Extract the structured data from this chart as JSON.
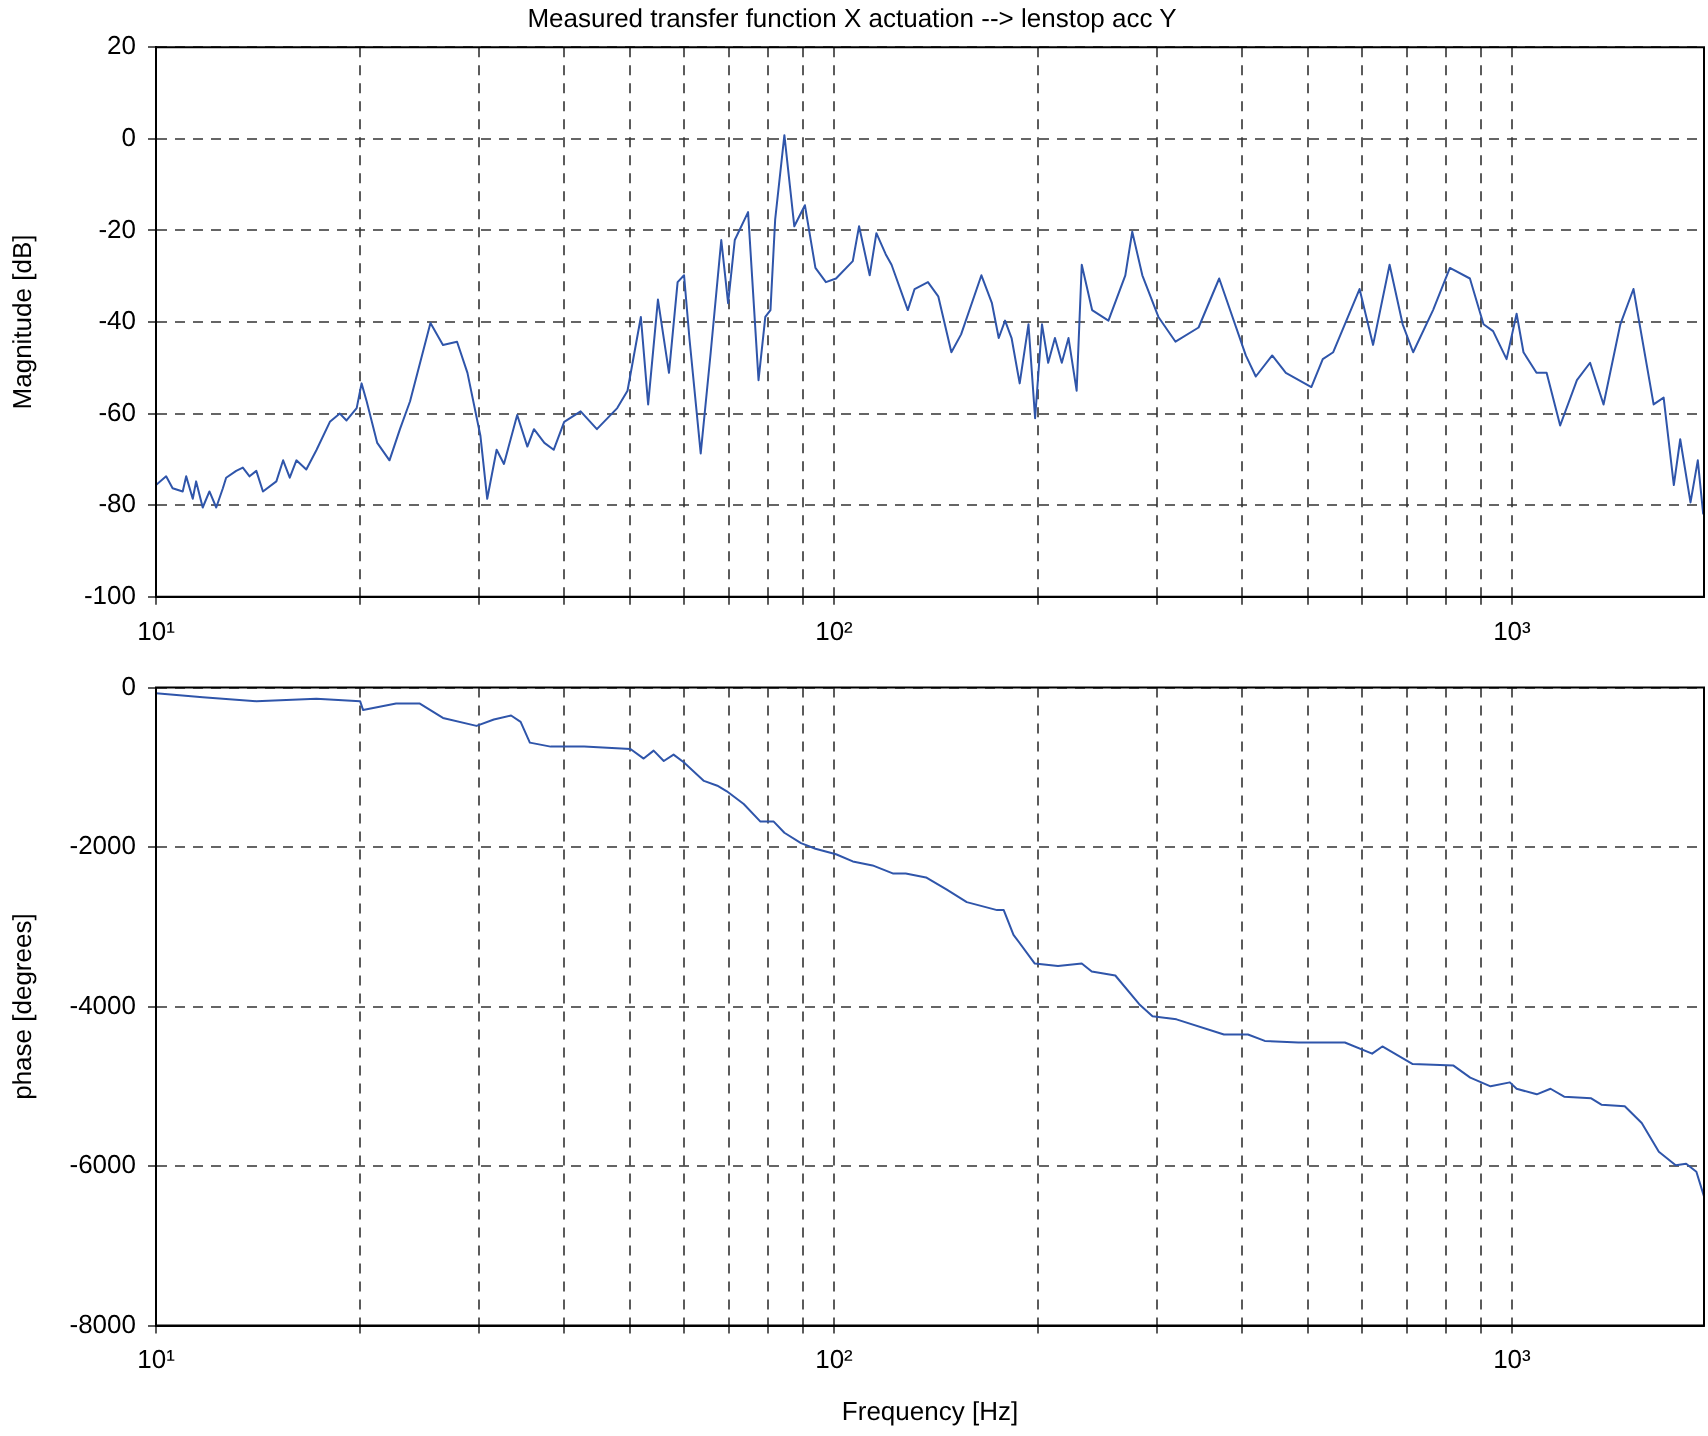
{
  "chart_data": [
    {
      "type": "line",
      "title": "Measured transfer function X actuation --> lenstop acc Y",
      "ylabel": "Magnitude [dB]",
      "log": "x",
      "grid": true,
      "xlim": [
        10,
        1920
      ],
      "ylim": [
        -100,
        20
      ],
      "xticks": [
        {
          "value": 10,
          "label": "10¹"
        },
        {
          "value": 20,
          "label": null
        },
        {
          "value": 30,
          "label": null
        },
        {
          "value": 40,
          "label": null
        },
        {
          "value": 50,
          "label": null
        },
        {
          "value": 60,
          "label": null
        },
        {
          "value": 70,
          "label": null
        },
        {
          "value": 80,
          "label": null
        },
        {
          "value": 90,
          "label": null
        },
        {
          "value": 100,
          "label": "10²"
        },
        {
          "value": 200,
          "label": null
        },
        {
          "value": 300,
          "label": null
        },
        {
          "value": 400,
          "label": null
        },
        {
          "value": 500,
          "label": null
        },
        {
          "value": 600,
          "label": null
        },
        {
          "value": 700,
          "label": null
        },
        {
          "value": 800,
          "label": null
        },
        {
          "value": 900,
          "label": null
        },
        {
          "value": 1000,
          "label": "10³"
        }
      ],
      "yticks": [
        -100,
        -80,
        -60,
        -40,
        -20,
        0,
        20
      ],
      "series": [
        {
          "color": "#2f55aa",
          "x": [
            10,
            10.35,
            10.58,
            10.95,
            11.08,
            11.33,
            11.46,
            11.72,
            11.99,
            12.27,
            12.55,
            12.69,
            13.13,
            13.43,
            13.74,
            14.06,
            14.38,
            15.05,
            15.4,
            15.75,
            16.11,
            16.66,
            17.24,
            18.05,
            18.67,
            19.1,
            19.77,
            20.1,
            20.45,
            21.2,
            22.1,
            22.9,
            23.7,
            25.4,
            26.5,
            27.8,
            28.8,
            30.1,
            30.8,
            31.8,
            32.6,
            34.1,
            35.3,
            36.1,
            37.4,
            38.6,
            40,
            42.3,
            43.2,
            44.7,
            47.9,
            49.6,
            51.9,
            53.2,
            55,
            57.1,
            58.8,
            60.1,
            61.2,
            63.6,
            65.8,
            68.2,
            69.8,
            71.4,
            74.7,
            77.4,
            79.2,
            80.6,
            81.9,
            84.5,
            87.4,
            90.6,
            93.9,
            97.3,
            100.7,
            106.6,
            108.9,
            112.9,
            115.5,
            119.2,
            121.6,
            128.5,
            131.5,
            137.6,
            142.5,
            149,
            154,
            165,
            171,
            175,
            178.8,
            182.8,
            187.9,
            193.6,
            198,
            202.7,
            207,
            211.8,
            216.8,
            221.8,
            228,
            232,
            240.3,
            254,
            269,
            275.4,
            285,
            301,
            319,
            345,
            370,
            405,
            419,
            443,
            464,
            506,
            526,
            545,
            596,
            624,
            660,
            690,
            715,
            765,
            810,
            867,
            908,
            938,
            982,
            1016,
            1040,
            1087,
            1125,
            1178,
            1247,
            1304,
            1365,
            1445,
            1511,
            1618,
            1674,
            1733,
            1771,
            1834,
            1880,
            1915
          ],
          "values": [
            -75.6,
            -73.7,
            -76.3,
            -77,
            -73.7,
            -78.6,
            -74.8,
            -80.5,
            -77,
            -80.5,
            -76.3,
            -74,
            -72.5,
            -71.8,
            -73.7,
            -72.5,
            -77,
            -74.8,
            -70.2,
            -74,
            -70.2,
            -72.2,
            -68,
            -61.8,
            -60,
            -61.5,
            -58.8,
            -53.4,
            -57.3,
            -66.4,
            -70.2,
            -63.4,
            -57.3,
            -40.2,
            -45,
            -44.3,
            -51.1,
            -64.9,
            -78.6,
            -67.9,
            -71,
            -60.3,
            -67.2,
            -63.4,
            -66.4,
            -67.9,
            -61.8,
            -59.5,
            -61,
            -63.4,
            -58.8,
            -55,
            -38.9,
            -58,
            -35.1,
            -51.1,
            -31.3,
            -29.8,
            -43.5,
            -68.7,
            -46.6,
            -22.1,
            -35.9,
            -22.1,
            -16,
            -52.7,
            -38.9,
            -37.4,
            -17.6,
            0.8,
            -19.1,
            -14.5,
            -28.2,
            -31.3,
            -30.5,
            -26.7,
            -19.1,
            -29.8,
            -20.6,
            -25.2,
            -27.5,
            -37.4,
            -32.8,
            -31.3,
            -34.4,
            -46.6,
            -42.7,
            -29.8,
            -35.9,
            -43.5,
            -39.7,
            -43.5,
            -53.4,
            -40.5,
            -61,
            -40.5,
            -48.9,
            -43.5,
            -48.9,
            -43.5,
            -55,
            -27.5,
            -37.4,
            -39.7,
            -29.8,
            -20.3,
            -29.8,
            -38.9,
            -44.3,
            -41.2,
            -30.5,
            -47.3,
            -51.9,
            -47.3,
            -51.1,
            -54.2,
            -48.1,
            -46.6,
            -32.8,
            -45,
            -27.5,
            -40.5,
            -46.6,
            -37.4,
            -28.2,
            -30.5,
            -40.5,
            -42,
            -48.1,
            -38.2,
            -46.6,
            -51.1,
            -51.1,
            -62.6,
            -52.7,
            -48.9,
            -58,
            -40.5,
            -32.8,
            -58,
            -56.5,
            -75.6,
            -65.6,
            -79.4,
            -70.2,
            -82
          ]
        }
      ]
    },
    {
      "type": "line",
      "xlabel": "Frequency [Hz]",
      "ylabel": "phase [degrees]",
      "log": "x",
      "grid": true,
      "xlim": [
        10,
        1920
      ],
      "ylim": [
        -8000,
        0
      ],
      "xticks": [
        {
          "value": 10,
          "label": "10¹"
        },
        {
          "value": 20,
          "label": null
        },
        {
          "value": 30,
          "label": null
        },
        {
          "value": 40,
          "label": null
        },
        {
          "value": 50,
          "label": null
        },
        {
          "value": 60,
          "label": null
        },
        {
          "value": 70,
          "label": null
        },
        {
          "value": 80,
          "label": null
        },
        {
          "value": 90,
          "label": null
        },
        {
          "value": 100,
          "label": "10²"
        },
        {
          "value": 200,
          "label": null
        },
        {
          "value": 300,
          "label": null
        },
        {
          "value": 400,
          "label": null
        },
        {
          "value": 500,
          "label": null
        },
        {
          "value": 600,
          "label": null
        },
        {
          "value": 700,
          "label": null
        },
        {
          "value": 800,
          "label": null
        },
        {
          "value": 900,
          "label": null
        },
        {
          "value": 1000,
          "label": "10³"
        }
      ],
      "yticks": [
        -8000,
        -6000,
        -4000,
        -2000,
        0
      ],
      "series": [
        {
          "color": "#2f55aa",
          "x": [
            10,
            11.72,
            14.06,
            17.24,
            20,
            20.2,
            22.6,
            24.5,
            26.5,
            29.7,
            31.5,
            33.4,
            34.5,
            35.6,
            38.2,
            42.8,
            50.1,
            52.4,
            54.2,
            56.1,
            58,
            60.1,
            64.3,
            67.3,
            69.5,
            73.6,
            77.9,
            81.5,
            84.5,
            89.4,
            93.9,
            100.7,
            106.6,
            114,
            122.1,
            127.6,
            136.7,
            146.5,
            157,
            174,
            178,
            184,
            197.8,
            214,
            232,
            240,
            260,
            282,
            295,
            320,
            376,
            408,
            432,
            484,
            567,
            622,
            644,
            714,
            820,
            868,
            930,
            993,
            1016,
            1088,
            1140,
            1194,
            1309,
            1355,
            1467,
            1554,
            1647,
            1744,
            1807,
            1871,
            1920
          ],
          "values": [
            -70,
            -120,
            -170,
            -140,
            -170,
            -280,
            -200,
            -200,
            -380,
            -480,
            -400,
            -350,
            -430,
            -690,
            -740,
            -740,
            -770,
            -890,
            -790,
            -920,
            -840,
            -940,
            -1170,
            -1230,
            -1300,
            -1460,
            -1680,
            -1680,
            -1820,
            -1950,
            -2020,
            -2090,
            -2180,
            -2230,
            -2330,
            -2330,
            -2380,
            -2530,
            -2690,
            -2790,
            -2790,
            -3100,
            -3460,
            -3490,
            -3460,
            -3560,
            -3610,
            -3970,
            -4120,
            -4160,
            -4350,
            -4350,
            -4430,
            -4450,
            -4450,
            -4590,
            -4500,
            -4720,
            -4740,
            -4890,
            -5000,
            -4950,
            -5030,
            -5100,
            -5030,
            -5130,
            -5150,
            -5230,
            -5250,
            -5460,
            -5820,
            -5990,
            -5970,
            -6070,
            -6380
          ]
        }
      ]
    }
  ]
}
